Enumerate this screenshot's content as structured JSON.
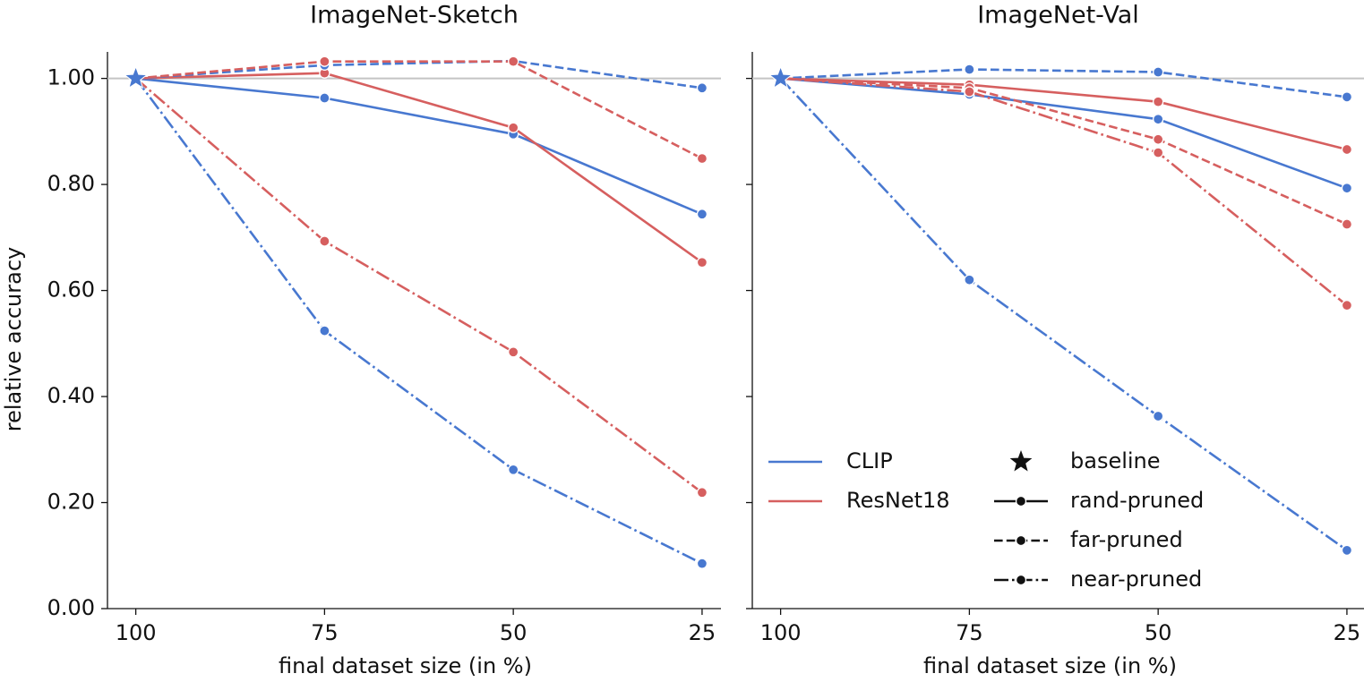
{
  "legend": {
    "corner": "lower left",
    "models": [
      {
        "name": "CLIP",
        "color": "#4878d0"
      },
      {
        "name": "ResNet18",
        "color": "#d65f5f"
      }
    ],
    "baseline": "baseline",
    "styles": [
      {
        "name": "rand-pruned",
        "dash": "solid"
      },
      {
        "name": "far-pruned",
        "dash": "dashed"
      },
      {
        "name": "near-pruned",
        "dash": "dashdot"
      }
    ]
  },
  "chart_data": [
    {
      "type": "line",
      "title": "ImageNet-Sketch",
      "xlabel": "final dataset size (in %)",
      "ylabel": "relative accuracy",
      "x": [
        100,
        75,
        50,
        25
      ],
      "xlim": [
        103.75,
        22.5
      ],
      "xticks": [
        100,
        75,
        50,
        25
      ],
      "ylim": [
        0,
        1.05
      ],
      "yticks": [
        {
          "value": 0,
          "label": "0.00"
        },
        {
          "value": 0.2,
          "label": "0.20"
        },
        {
          "value": 0.4,
          "label": "0.40"
        },
        {
          "value": 0.6,
          "label": "0.60"
        },
        {
          "value": 0.8,
          "label": "0.80"
        },
        {
          "value": 1,
          "label": "1.00"
        }
      ],
      "baseline": 1.0,
      "series": [
        {
          "model": 0,
          "style": 0,
          "values": [
            1.0,
            0.963,
            0.895,
            0.744
          ]
        },
        {
          "model": 1,
          "style": 0,
          "values": [
            1.0,
            1.01,
            0.907,
            0.653
          ]
        },
        {
          "model": 0,
          "style": 1,
          "values": [
            1.0,
            1.025,
            1.033,
            0.982
          ]
        },
        {
          "model": 1,
          "style": 1,
          "values": [
            1.0,
            1.032,
            1.032,
            0.849
          ]
        },
        {
          "model": 0,
          "style": 2,
          "values": [
            1.0,
            0.524,
            0.262,
            0.085
          ]
        },
        {
          "model": 1,
          "style": 2,
          "values": [
            1.0,
            0.693,
            0.484,
            0.219
          ]
        }
      ]
    },
    {
      "type": "line",
      "title": "ImageNet-Val",
      "xlabel": "final dataset size (in %)",
      "x": [
        100,
        75,
        50,
        25
      ],
      "xlim": [
        103.75,
        22.5
      ],
      "xticks": [
        100,
        75,
        50,
        25
      ],
      "ylim": [
        0,
        1.05
      ],
      "yticks": [
        0,
        0.2,
        0.4,
        0.6,
        0.8,
        1
      ],
      "baseline": 1.0,
      "series": [
        {
          "model": 0,
          "style": 0,
          "values": [
            1.0,
            0.97,
            0.923,
            0.793
          ]
        },
        {
          "model": 1,
          "style": 0,
          "values": [
            1.0,
            0.988,
            0.956,
            0.866
          ]
        },
        {
          "model": 0,
          "style": 1,
          "values": [
            1.0,
            1.017,
            1.012,
            0.965
          ]
        },
        {
          "model": 1,
          "style": 1,
          "values": [
            1.0,
            0.982,
            0.885,
            0.725
          ]
        },
        {
          "model": 0,
          "style": 2,
          "values": [
            1.0,
            0.62,
            0.363,
            0.11
          ]
        },
        {
          "model": 1,
          "style": 2,
          "values": [
            1.0,
            0.975,
            0.86,
            0.572
          ]
        }
      ]
    }
  ]
}
